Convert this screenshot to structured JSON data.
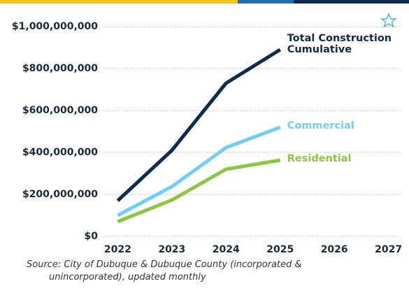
{
  "chart_data": {
    "type": "line",
    "x": [
      2022,
      2023,
      2024,
      2025
    ],
    "series": [
      {
        "name": "Total Construction Cumulative",
        "color": "#0d2a4f",
        "values": [
          170000000,
          410000000,
          730000000,
          890000000
        ]
      },
      {
        "name": "Commercial",
        "color": "#6dcff6",
        "values": [
          100000000,
          237000000,
          423000000,
          520000000
        ]
      },
      {
        "name": "Residential",
        "color": "#8dc63f",
        "values": [
          70000000,
          173000000,
          320000000,
          363000000
        ]
      }
    ],
    "xlim": [
      2021.75,
      2027.25
    ],
    "xticks": [
      2022,
      2023,
      2024,
      2025,
      2026,
      2027
    ],
    "ylim": [
      0,
      1000000000
    ],
    "yticks": [
      {
        "value": 0,
        "label": "$0"
      },
      {
        "value": 200000000,
        "label": "$200,000,000"
      },
      {
        "value": 400000000,
        "label": "$400,000,000"
      },
      {
        "value": 600000000,
        "label": "$600,000,000"
      },
      {
        "value": 800000000,
        "label": "$800,000,000"
      },
      {
        "value": 1000000000,
        "label": "$1,000,000,000"
      }
    ],
    "grid": true,
    "source": "Source: City of Dubuque & Dubuque County (incorporated & unincorporated), updated monthly"
  }
}
